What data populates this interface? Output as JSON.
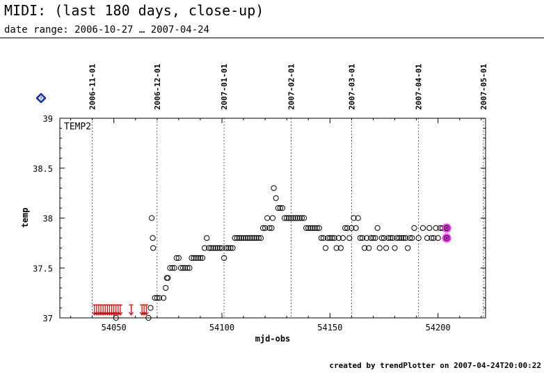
{
  "header": {
    "title": "MIDI: (last 180 days, close-up)",
    "subtitle": "date range: 2006-10-27 … 2007-04-24"
  },
  "help_icon": {
    "name": "help-diamond-icon",
    "color": "#1e3fd6"
  },
  "footer": {
    "credit": "created by trendPlotter on 2007-04-24T20:00:22"
  },
  "chart_data": {
    "type": "scatter",
    "panel_label": "TEMP2",
    "xlabel": "mjd-obs",
    "ylabel": "temp",
    "xlim": [
      54025,
      54222
    ],
    "ylim": [
      37,
      39
    ],
    "xticks": [
      54050,
      54100,
      54150,
      54200
    ],
    "yticks": [
      37,
      37.5,
      38,
      38.5,
      39
    ],
    "ytick_labels": [
      "37",
      "37.5",
      "38",
      "38.5",
      "39"
    ],
    "grid": false,
    "date_markers": [
      {
        "label": "2006-11-01",
        "x": 54040
      },
      {
        "label": "2006-12-01",
        "x": 54070
      },
      {
        "label": "2007-01-01",
        "x": 54101
      },
      {
        "label": "2007-02-01",
        "x": 54132
      },
      {
        "label": "2007-03-01",
        "x": 54160
      },
      {
        "label": "2007-04-01",
        "x": 54191
      },
      {
        "label": "2007-05-01",
        "x": 54221
      }
    ],
    "colors": {
      "points": "#000000",
      "limits": "#dd0000",
      "latest": "#ff33ff"
    },
    "points": [
      [
        54051,
        37.0
      ],
      [
        54066,
        37.0
      ],
      [
        54067,
        37.1
      ],
      [
        54067.5,
        38.0
      ],
      [
        54068,
        37.8
      ],
      [
        54068.2,
        37.7
      ],
      [
        54069,
        37.2
      ],
      [
        54070,
        37.2
      ],
      [
        54071,
        37.2
      ],
      [
        54073,
        37.2
      ],
      [
        54074,
        37.3
      ],
      [
        54074.5,
        37.4
      ],
      [
        54075,
        37.4
      ],
      [
        54076,
        37.5
      ],
      [
        54077,
        37.5
      ],
      [
        54078,
        37.5
      ],
      [
        54079,
        37.6
      ],
      [
        54080,
        37.6
      ],
      [
        54081,
        37.5
      ],
      [
        54082,
        37.5
      ],
      [
        54083,
        37.5
      ],
      [
        54084,
        37.5
      ],
      [
        54085,
        37.5
      ],
      [
        54086,
        37.6
      ],
      [
        54087,
        37.6
      ],
      [
        54088,
        37.6
      ],
      [
        54089,
        37.6
      ],
      [
        54090,
        37.6
      ],
      [
        54091,
        37.6
      ],
      [
        54092,
        37.7
      ],
      [
        54093,
        37.8
      ],
      [
        54094,
        37.7
      ],
      [
        54095,
        37.7
      ],
      [
        54096,
        37.7
      ],
      [
        54097,
        37.7
      ],
      [
        54098,
        37.7
      ],
      [
        54099,
        37.7
      ],
      [
        54100,
        37.7
      ],
      [
        54101,
        37.6
      ],
      [
        54102,
        37.7
      ],
      [
        54103,
        37.7
      ],
      [
        54104,
        37.7
      ],
      [
        54105,
        37.7
      ],
      [
        54106,
        37.8
      ],
      [
        54107,
        37.8
      ],
      [
        54108,
        37.8
      ],
      [
        54109,
        37.8
      ],
      [
        54110,
        37.8
      ],
      [
        54111,
        37.8
      ],
      [
        54112,
        37.8
      ],
      [
        54113,
        37.8
      ],
      [
        54114,
        37.8
      ],
      [
        54115,
        37.8
      ],
      [
        54116,
        37.8
      ],
      [
        54117,
        37.8
      ],
      [
        54118,
        37.8
      ],
      [
        54119,
        37.9
      ],
      [
        54120,
        37.9
      ],
      [
        54121,
        38.0
      ],
      [
        54122,
        37.9
      ],
      [
        54123,
        37.9
      ],
      [
        54123.5,
        38.0
      ],
      [
        54124,
        38.3
      ],
      [
        54125,
        38.2
      ],
      [
        54126,
        38.1
      ],
      [
        54127,
        38.1
      ],
      [
        54128,
        38.1
      ],
      [
        54129,
        38.0
      ],
      [
        54130,
        38.0
      ],
      [
        54131,
        38.0
      ],
      [
        54132,
        38.0
      ],
      [
        54133,
        38.0
      ],
      [
        54134,
        38.0
      ],
      [
        54135,
        38.0
      ],
      [
        54136,
        38.0
      ],
      [
        54137,
        38.0
      ],
      [
        54138,
        38.0
      ],
      [
        54139,
        37.9
      ],
      [
        54140,
        37.9
      ],
      [
        54141,
        37.9
      ],
      [
        54142,
        37.9
      ],
      [
        54143,
        37.9
      ],
      [
        54144,
        37.9
      ],
      [
        54145,
        37.9
      ],
      [
        54146,
        37.8
      ],
      [
        54147,
        37.8
      ],
      [
        54148,
        37.7
      ],
      [
        54149,
        37.8
      ],
      [
        54150,
        37.8
      ],
      [
        54151,
        37.8
      ],
      [
        54152,
        37.8
      ],
      [
        54153,
        37.7
      ],
      [
        54154,
        37.8
      ],
      [
        54155,
        37.7
      ],
      [
        54156,
        37.8
      ],
      [
        54157,
        37.9
      ],
      [
        54158,
        37.9
      ],
      [
        54159,
        37.8
      ],
      [
        54160,
        37.9
      ],
      [
        54161,
        38.0
      ],
      [
        54162,
        37.9
      ],
      [
        54163,
        38.0
      ],
      [
        54164,
        37.8
      ],
      [
        54165,
        37.8
      ],
      [
        54166,
        37.7
      ],
      [
        54167,
        37.8
      ],
      [
        54168,
        37.7
      ],
      [
        54169,
        37.8
      ],
      [
        54170,
        37.8
      ],
      [
        54171,
        37.8
      ],
      [
        54172,
        37.9
      ],
      [
        54173,
        37.7
      ],
      [
        54174,
        37.8
      ],
      [
        54175,
        37.8
      ],
      [
        54176,
        37.7
      ],
      [
        54177,
        37.8
      ],
      [
        54178,
        37.8
      ],
      [
        54179,
        37.8
      ],
      [
        54180,
        37.7
      ],
      [
        54181,
        37.8
      ],
      [
        54182,
        37.8
      ],
      [
        54183,
        37.8
      ],
      [
        54184,
        37.8
      ],
      [
        54185,
        37.8
      ],
      [
        54186,
        37.7
      ],
      [
        54187,
        37.8
      ],
      [
        54188,
        37.8
      ],
      [
        54189,
        37.9
      ],
      [
        54191,
        37.8
      ],
      [
        54193,
        37.9
      ],
      [
        54195,
        37.8
      ],
      [
        54196,
        37.9
      ],
      [
        54197,
        37.8
      ],
      [
        54198,
        37.8
      ],
      [
        54199,
        37.9
      ],
      [
        54200,
        37.8
      ],
      [
        54201,
        37.9
      ],
      [
        54202,
        37.9
      ]
    ],
    "upper_limit_arrows": [
      54041,
      54042,
      54043,
      54044,
      54045,
      54046,
      54047,
      54048,
      54049,
      54050,
      54051,
      54052,
      54053,
      54058,
      54063,
      54064,
      54065
    ],
    "latest_points": [
      [
        54204,
        37.9
      ],
      [
        54204,
        37.8
      ]
    ]
  }
}
